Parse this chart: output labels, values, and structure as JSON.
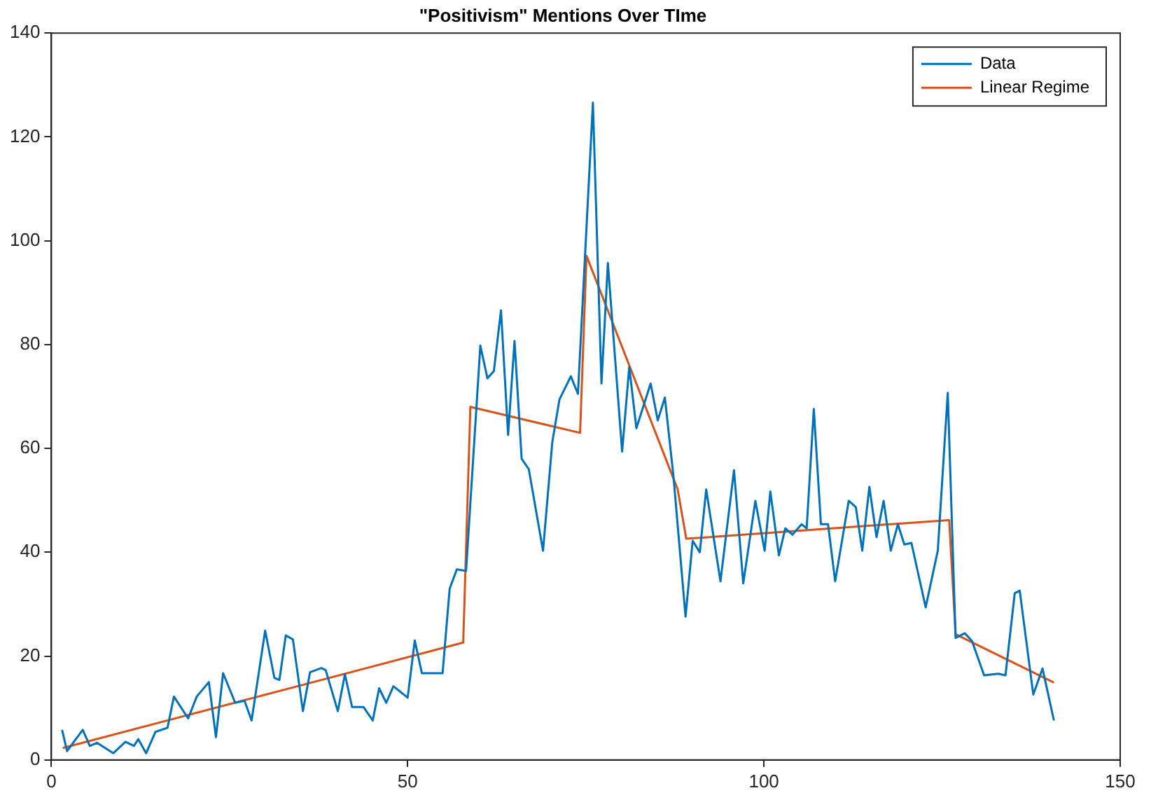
{
  "chart_data": {
    "type": "line",
    "title": "\"Positivism\" Mentions Over TIme",
    "xlim": [
      0,
      150
    ],
    "xticks": [
      0,
      50,
      100,
      150
    ],
    "ylim": [
      0,
      140
    ],
    "yticks": [
      0,
      20,
      40,
      60,
      80,
      100,
      120,
      140
    ],
    "grid": false,
    "legend": "top right",
    "marker": "none",
    "line_style": "solid",
    "series": [
      {
        "name": "Data",
        "color": "#0072bd",
        "x": [
          1.5,
          2.2,
          4.4,
          5.4,
          6.4,
          8.7,
          10.4,
          11.6,
          12.2,
          13.3,
          14.6,
          16.3,
          17.2,
          19.2,
          20.4,
          22.1,
          23.1,
          24.1,
          25.8,
          27.1,
          28.1,
          30.0,
          31.3,
          32.0,
          32.9,
          33.9,
          35.3,
          36.3,
          37.9,
          38.5,
          40.2,
          41.2,
          42.2,
          43.8,
          45.1,
          46.0,
          47.0,
          48.0,
          50.0,
          51.0,
          52.0,
          54.9,
          55.9,
          56.9,
          58.2,
          60.2,
          61.2,
          62.1,
          63.1,
          64.1,
          65.0,
          66.0,
          67.0,
          69.0,
          70.3,
          71.3,
          72.9,
          73.9,
          76.0,
          77.2,
          78.1,
          80.1,
          81.1,
          82.1,
          84.1,
          85.1,
          86.1,
          87.3,
          89.0,
          90.0,
          91.0,
          91.9,
          93.9,
          95.8,
          97.1,
          98.8,
          100.1,
          100.9,
          102.1,
          103.0,
          104.0,
          105.3,
          106.0,
          107.0,
          108.0,
          109.0,
          110.0,
          111.9,
          112.9,
          113.8,
          114.8,
          115.8,
          116.8,
          117.8,
          118.8,
          119.7,
          120.7,
          122.7,
          124.4,
          125.8,
          126.9,
          128.2,
          129.2,
          130.9,
          132.9,
          133.9,
          135.2,
          135.9,
          137.8,
          139.1,
          140.7
        ],
        "values": [
          5.8,
          1.7,
          5.8,
          2.7,
          3.3,
          1.3,
          3.5,
          2.7,
          4,
          1.3,
          5.4,
          6.2,
          12.2,
          8,
          12.2,
          15,
          4.4,
          16.7,
          11,
          11.4,
          7.6,
          24.9,
          15.8,
          15.4,
          24,
          23.2,
          9.4,
          16.9,
          17.7,
          17.3,
          9.4,
          16.5,
          10.2,
          10.2,
          7.6,
          13.8,
          11,
          14.2,
          12,
          23,
          16.7,
          16.7,
          33,
          36.7,
          36.4,
          79.8,
          73.5,
          74.9,
          86.6,
          62.6,
          80.7,
          58,
          56,
          40.3,
          61.2,
          69.4,
          73.9,
          70.5,
          126.6,
          72.5,
          95.7,
          59.4,
          75.7,
          63.9,
          72.5,
          65.4,
          69.8,
          54.7,
          27.6,
          42.2,
          40,
          52.1,
          34.4,
          55.8,
          34,
          49.9,
          40.3,
          51.7,
          39.4,
          44.6,
          43.4,
          45.4,
          44.6,
          67.6,
          45.4,
          45.4,
          34.4,
          49.9,
          48.7,
          40.3,
          52.6,
          42.9,
          49.9,
          40.3,
          45.4,
          41.5,
          41.8,
          29.4,
          40.3,
          70.7,
          23.5,
          24.4,
          22.9,
          16.3,
          16.6,
          16.3,
          32.1,
          32.6,
          12.6,
          17.6,
          7.6
        ]
      },
      {
        "name": "Linear Regime",
        "color": "#d95319",
        "x": [
          1.6,
          57.8,
          58.8,
          74.2,
          75.1,
          87.9,
          89.1,
          126.0,
          126.9,
          140.7
        ],
        "values": [
          2.3,
          22.6,
          68,
          63,
          97.1,
          52.1,
          42.6,
          46.2,
          24.2,
          14.9
        ]
      }
    ]
  }
}
